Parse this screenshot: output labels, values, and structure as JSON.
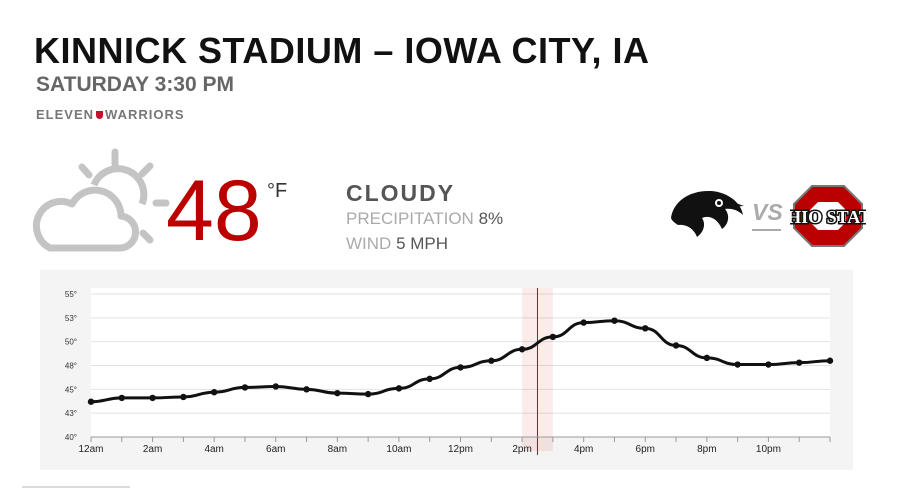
{
  "header": {
    "title": "KINNICK STADIUM – IOWA CITY, IA",
    "subtitle": "SATURDAY 3:30 PM",
    "brand_left": "ELEVEN",
    "brand_right": "WARRIORS"
  },
  "weather": {
    "icon": "partly-cloudy-icon",
    "temperature": "48",
    "unit": "°F",
    "condition": "CLOUDY",
    "precip_label": "PRECIPITATION",
    "precip_value": "8%",
    "wind_label": "WIND",
    "wind_value": "5 MPH",
    "temp_color": "#bb0000"
  },
  "matchup": {
    "home_logo": "iowa-hawkeye-logo",
    "vs": "VS",
    "away_logo": "ohio-state-logo",
    "away_logo_text": "OHIO STATE",
    "away_color": "#bb0000"
  },
  "chart_data": {
    "type": "line",
    "x": [
      0,
      1,
      2,
      3,
      4,
      5,
      6,
      7,
      8,
      9,
      10,
      11,
      12,
      13,
      14,
      15,
      16,
      17,
      18,
      19,
      20,
      21,
      22,
      23,
      24
    ],
    "x_tick_labels": [
      "12am",
      "2am",
      "4am",
      "6am",
      "8am",
      "10am",
      "12pm",
      "2pm",
      "4pm",
      "6pm",
      "8pm",
      "10pm"
    ],
    "x_tick_positions": [
      0,
      2,
      4,
      6,
      8,
      10,
      12,
      14,
      16,
      18,
      20,
      22
    ],
    "y_tick_labels": [
      "40°",
      "43°",
      "45°",
      "48°",
      "50°",
      "53°",
      "55°"
    ],
    "y_tick_values": [
      40,
      42.5,
      45,
      47.5,
      50,
      52.5,
      55
    ],
    "ylim": [
      40,
      55
    ],
    "xlim": [
      0,
      24
    ],
    "series": [
      {
        "values": [
          43.7,
          44.1,
          44.1,
          44.2,
          44.7,
          45.2,
          45.3,
          45.0,
          44.6,
          44.5,
          45.1,
          46.1,
          47.3,
          48.0,
          49.2,
          50.5,
          52.0,
          52.2,
          51.4,
          49.6,
          48.3,
          47.6,
          47.6,
          47.8,
          48.0
        ],
        "color": "#111111"
      }
    ],
    "highlight_x": 14.5,
    "highlight_band": [
      14,
      15
    ],
    "highlight_color": "#d40000",
    "grid": true
  }
}
